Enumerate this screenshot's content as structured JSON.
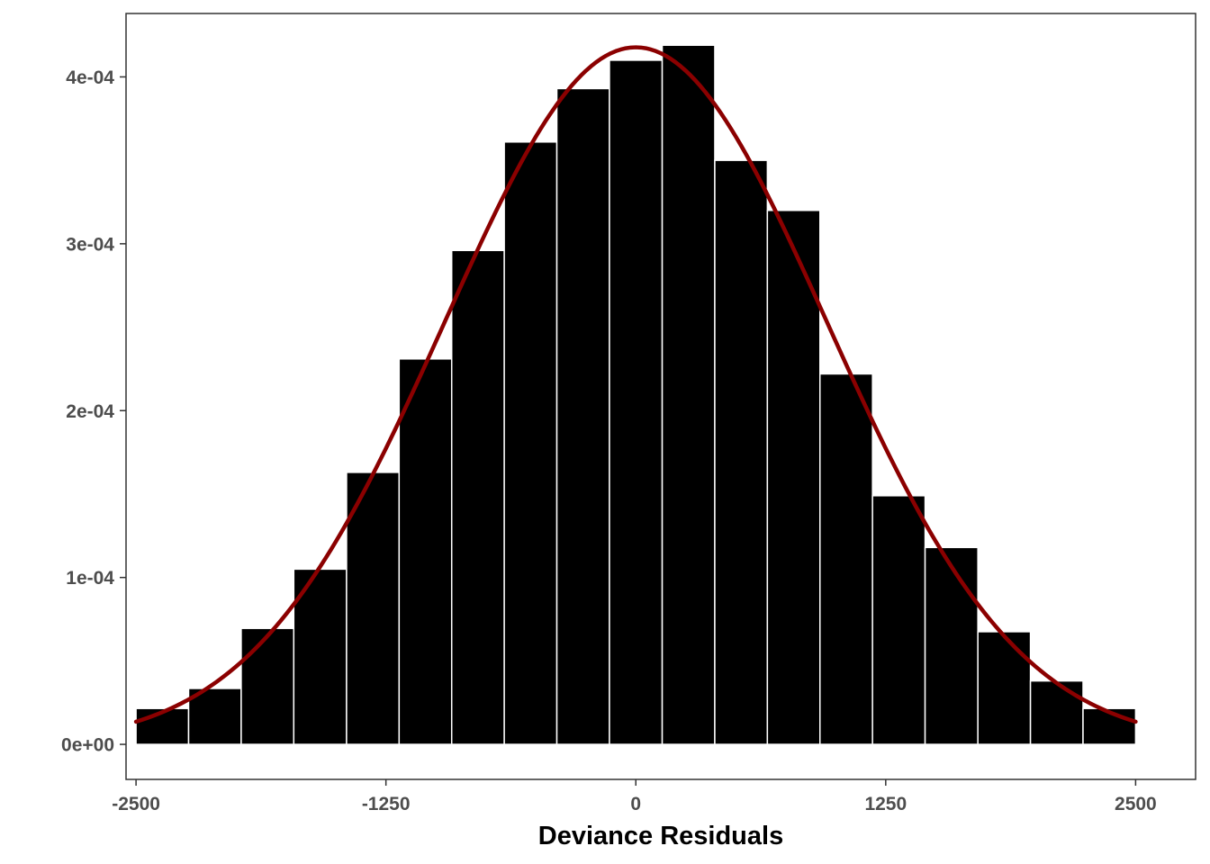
{
  "chart_data": {
    "type": "bar",
    "subtype": "histogram with normal density overlay",
    "xlabel": "Deviance Residuals",
    "ylabel": "",
    "title": "",
    "xlim": [
      -2550,
      2800
    ],
    "ylim": [
      -2.1e-05,
      0.000438
    ],
    "x_ticks": [
      -2500,
      -1250,
      0,
      1250,
      2500
    ],
    "x_tick_labels": [
      "-2500",
      "-1250",
      "0",
      "1250",
      "2500"
    ],
    "y_ticks": [
      0,
      0.0001,
      0.0002,
      0.0003,
      0.0004
    ],
    "y_tick_labels": [
      "0e+00",
      "1e-04",
      "2e-04",
      "3e-04",
      "4e-04"
    ],
    "bin_edges": [
      -2500,
      -2237,
      -1974,
      -1711,
      -1447,
      -1184,
      -921,
      -658,
      -395,
      -132,
      132,
      395,
      658,
      921,
      1184,
      1447,
      1711,
      1974,
      2237,
      2500
    ],
    "density": [
      2.15e-05,
      3.35e-05,
      6.95e-05,
      0.000105,
      0.000163,
      0.000231,
      0.000296,
      0.000361,
      0.000393,
      0.00041,
      0.000419,
      0.00035,
      0.00032,
      0.000222,
      0.000149,
      0.000118,
      6.75e-05,
      3.8e-05,
      2.15e-05
    ],
    "normal_curve": {
      "mean": 0,
      "sd": 955,
      "x_range": [
        -2500,
        2500
      ]
    },
    "grid": false,
    "legend": "none",
    "colors": {
      "bar_fill": "#000000",
      "bar_outline": "#ffffff",
      "curve": "#8b0000",
      "panel_border": "#333333",
      "tick_text": "#4d4d4d",
      "axis_title": "#000000"
    }
  }
}
